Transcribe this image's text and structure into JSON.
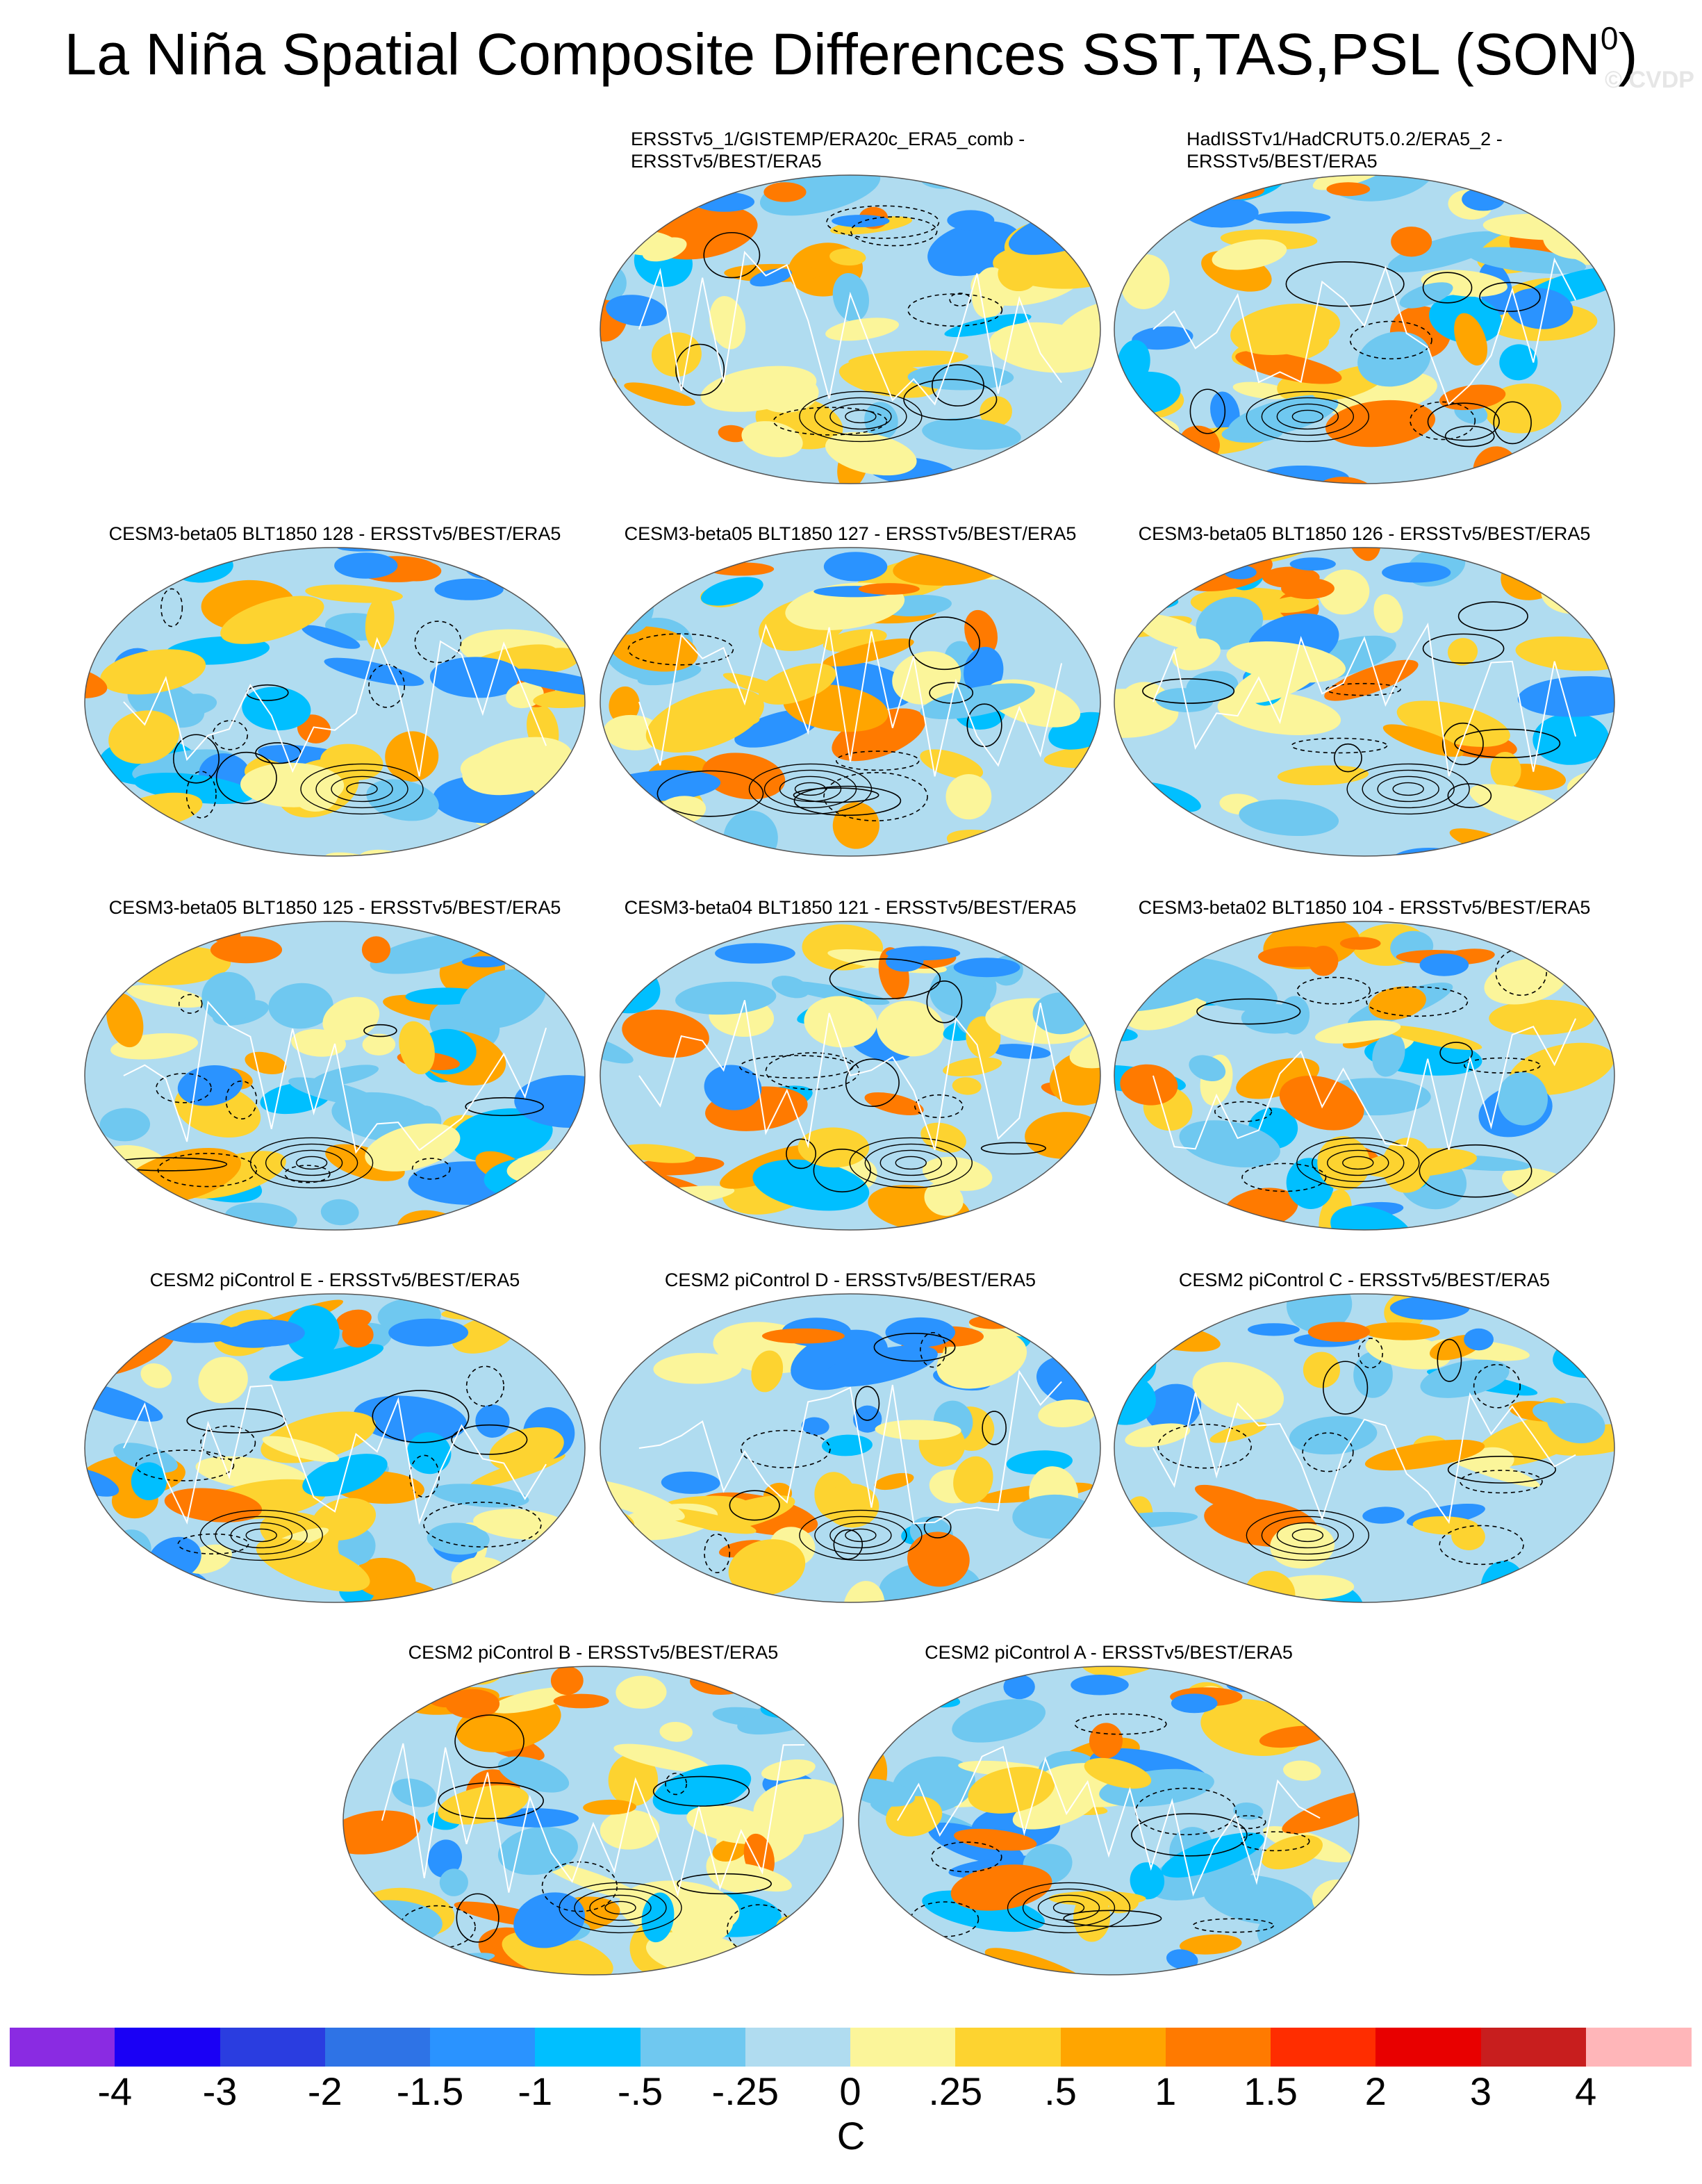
{
  "title": "La Niña Spatial Composite Differences SST,TAS,PSL (SON",
  "title_superscript": "0",
  "title_close": ")",
  "watermark": "© CVDP",
  "panels": [
    {
      "label": "ERSSTv5_1/GISTEMP/ERA20c_ERA5_comb -",
      "label2": "ERSSTv5/BEST/ERA5"
    },
    {
      "label": "HadISSTv1/HadCRUT5.0.2/ERA5_2 -",
      "label2": "ERSSTv5/BEST/ERA5"
    },
    {
      "label": "CESM3-beta05 BLT1850 128 - ERSSTv5/BEST/ERA5"
    },
    {
      "label": "CESM3-beta05 BLT1850 127 - ERSSTv5/BEST/ERA5"
    },
    {
      "label": "CESM3-beta05 BLT1850 126 - ERSSTv5/BEST/ERA5"
    },
    {
      "label": "CESM3-beta05 BLT1850 125 - ERSSTv5/BEST/ERA5"
    },
    {
      "label": "CESM3-beta04 BLT1850 121 - ERSSTv5/BEST/ERA5"
    },
    {
      "label": "CESM3-beta02 BLT1850 104 - ERSSTv5/BEST/ERA5"
    },
    {
      "label": "CESM2 piControl E - ERSSTv5/BEST/ERA5"
    },
    {
      "label": "CESM2 piControl D - ERSSTv5/BEST/ERA5"
    },
    {
      "label": "CESM2 piControl C - ERSSTv5/BEST/ERA5"
    },
    {
      "label": "CESM2 piControl B - ERSSTv5/BEST/ERA5"
    },
    {
      "label": "CESM2 piControl A - ERSSTv5/BEST/ERA5"
    }
  ],
  "colorbar": {
    "units": "C",
    "labels": [
      "-4",
      "-3",
      "-2",
      "-1.5",
      "-1",
      "-.5",
      "-.25",
      "0",
      ".25",
      ".5",
      "1",
      "1.5",
      "2",
      "3",
      "4"
    ],
    "colors": [
      "#8a2be2",
      "#1a00f5",
      "#2a3de0",
      "#2e73e6",
      "#2a93ff",
      "#00bfff",
      "#6fc8f0",
      "#b0dcf0",
      "#fbf59a",
      "#fdd330",
      "#ffa500",
      "#ff7a00",
      "#ff2d00",
      "#e80000",
      "#c81e1e",
      "#ffb6b9"
    ]
  },
  "chart_data": {
    "type": "heatmap",
    "title": "La Niña Spatial Composite Differences SST,TAS,PSL (SON0)",
    "projection": "Robinson (global)",
    "fields": [
      "SST",
      "TAS",
      "PSL"
    ],
    "shading": "SST/TAS composite difference",
    "contours": "PSL composite difference (solid positive, dashed negative)",
    "units": "C",
    "levels": [
      -4,
      -3,
      -2,
      -1.5,
      -1,
      -0.5,
      -0.25,
      0,
      0.25,
      0.5,
      1,
      1.5,
      2,
      3,
      4
    ],
    "grid": false
  }
}
